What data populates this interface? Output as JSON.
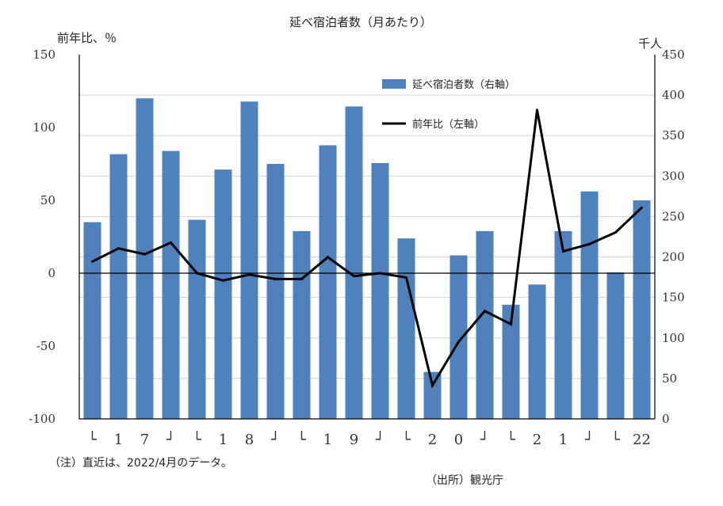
{
  "chart_data": {
    "type": "bar+line",
    "title": "延べ宿泊者数（月あたり）",
    "left_axis_unit": "前年比、％",
    "right_axis_unit": "千人",
    "left_axis": {
      "min": -100,
      "max": 150,
      "ticks": [
        150,
        100,
        50,
        0,
        -50,
        -100
      ]
    },
    "right_axis": {
      "min": 0,
      "max": 450,
      "ticks": [
        450,
        400,
        350,
        300,
        250,
        200,
        150,
        100,
        50,
        0
      ]
    },
    "negative_tick_color": "#c00000",
    "x_tick_labels": [
      "└",
      "1",
      "7",
      "┘",
      "└",
      "1",
      "8",
      "┘",
      "└",
      "1",
      "9",
      "┘",
      "└",
      "2",
      "0",
      "┘",
      "└",
      "2",
      "1",
      "┘",
      "└",
      "22"
    ],
    "series": [
      {
        "name": "延べ宿泊者数（右軸）",
        "type": "bar",
        "axis": "right",
        "color": "#4f81bd",
        "values": [
          243,
          327,
          396,
          331,
          246,
          308,
          392,
          315,
          232,
          338,
          386,
          316,
          223,
          58,
          202,
          232,
          141,
          166,
          232,
          281,
          181,
          270
        ]
      },
      {
        "name": "前年比（左軸）",
        "type": "line",
        "axis": "left",
        "color": "#000000",
        "values": [
          8,
          17,
          13,
          21,
          0,
          -5,
          -1,
          -4,
          -4,
          11,
          -2,
          0,
          -3,
          -77,
          -47,
          -26,
          -35,
          112,
          15,
          20,
          28,
          45
        ]
      }
    ],
    "legend": [
      "延べ宿泊者数（右軸）",
      "前年比（左軸）"
    ],
    "legend_position": "top-right"
  },
  "notes": {
    "footnote": "（注）直近は、2022/4月のデータ。",
    "source": "（出所）観光庁"
  }
}
